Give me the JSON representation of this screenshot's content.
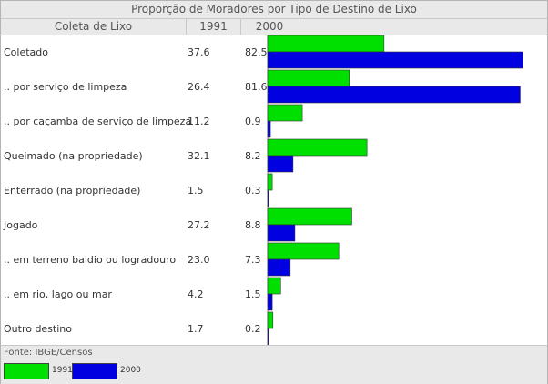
{
  "chart_data": {
    "type": "bar",
    "title": "Proporção de Moradores por Tipo de Destino de Lixo",
    "columns": [
      "Coleta de Lixo",
      "1991",
      "2000"
    ],
    "categories": [
      "Coletado",
      ".. por serviço de limpeza",
      ".. por caçamba de serviço de limpeza",
      "Queimado (na propriedade)",
      "Enterrado (na propriedade)",
      "Jogado",
      ".. em terreno baldio ou logradouro",
      ".. em rio, lago ou mar",
      "Outro destino"
    ],
    "series": [
      {
        "name": "1991",
        "color": "#00e000",
        "values": [
          37.6,
          26.4,
          11.2,
          32.1,
          1.5,
          27.2,
          23.0,
          4.2,
          1.7
        ]
      },
      {
        "name": "2000",
        "color": "#0000e0",
        "values": [
          82.5,
          81.6,
          0.9,
          8.2,
          0.3,
          8.8,
          7.3,
          1.5,
          0.2
        ]
      }
    ],
    "value_labels": [
      [
        "37.6",
        "82.5"
      ],
      [
        "26.4",
        "81.6"
      ],
      [
        "11.2",
        "0.9"
      ],
      [
        "32.1",
        "8.2"
      ],
      [
        "1.5",
        "0.3"
      ],
      [
        "27.2",
        "8.8"
      ],
      [
        "23.0",
        "7.3"
      ],
      [
        "4.2",
        "1.5"
      ],
      [
        "1.7",
        "0.2"
      ]
    ],
    "xlim": [
      0,
      100
    ],
    "source": "Fonte: IBGE/Censos",
    "legend": [
      {
        "label": "1991",
        "color": "#00e000"
      },
      {
        "label": "2000",
        "color": "#0000e0"
      }
    ]
  }
}
